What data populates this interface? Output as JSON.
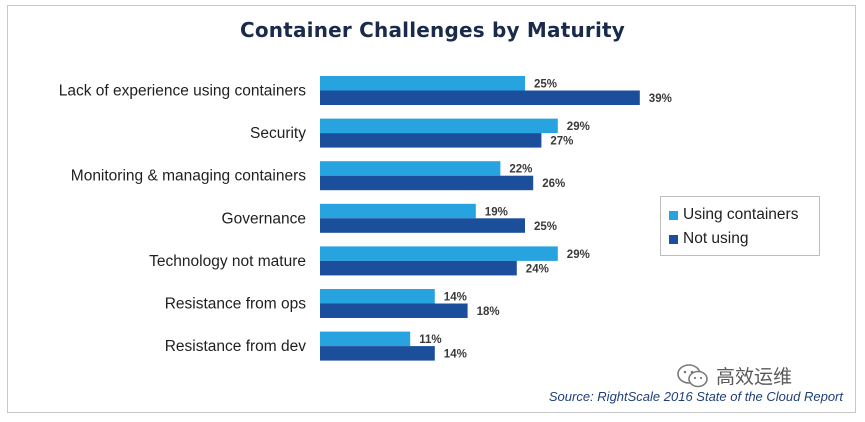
{
  "chart_data": {
    "type": "bar",
    "orientation": "horizontal",
    "title": "Container Challenges by Maturity",
    "categories": [
      "Lack of experience using containers",
      "Security",
      "Monitoring & managing containers",
      "Governance",
      "Technology not mature",
      "Resistance from ops",
      "Resistance from dev"
    ],
    "series": [
      {
        "name": "Using containers",
        "values": [
          25,
          29,
          22,
          19,
          29,
          14,
          11
        ],
        "color": "#27a3e0"
      },
      {
        "name": "Not using",
        "values": [
          39,
          27,
          26,
          25,
          24,
          18,
          14
        ],
        "color": "#1b4f9c"
      }
    ],
    "value_suffix": "%",
    "xlim": [
      0,
      40
    ],
    "grid": false,
    "legend_position": "right"
  },
  "source": "Source: RightScale 2016 State of the Cloud Report",
  "watermark": {
    "text": "高效运维",
    "icon": "wechat-logo-icon"
  }
}
